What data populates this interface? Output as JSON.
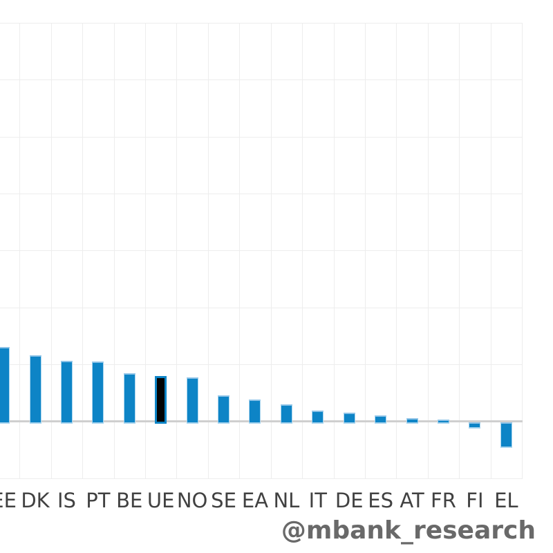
{
  "chart_data": {
    "type": "bar",
    "categories": [
      "EE",
      "DK",
      "IS",
      "PT",
      "BE",
      "UE",
      "NO",
      "SE",
      "EA",
      "NL",
      "IT",
      "DE",
      "ES",
      "AT",
      "FR",
      "FI",
      "EL"
    ],
    "values": [
      1.3,
      1.16,
      1.06,
      1.05,
      0.84,
      0.8,
      0.77,
      0.46,
      0.38,
      0.3,
      0.19,
      0.15,
      0.1,
      0.06,
      0.03,
      -0.1,
      -0.44
    ],
    "highlight_category": "UE",
    "title": "",
    "xlabel": "",
    "ylabel": "",
    "value_unit": "gridline units (y-axis tick labels cropped out of view)",
    "ylim": [
      -1,
      7
    ],
    "grid": true,
    "legend": "none",
    "crop_note": "image shows bottom-left portion of a larger chart; y-axis and title not visible"
  },
  "watermark": {
    "text": "@mbank_research"
  },
  "colors": {
    "background": "#ffffff",
    "bar_fill": "#0d84c6",
    "bar_edge": "#a9d5ef",
    "bar_edge_top": "#8cc2e7",
    "highlight_fill": "#030303",
    "highlight_border": "#0d84c6",
    "zero_line": "#cfcfcf",
    "grid_line": "#ededed",
    "tick_label": "#414141",
    "watermark": "#696969"
  }
}
